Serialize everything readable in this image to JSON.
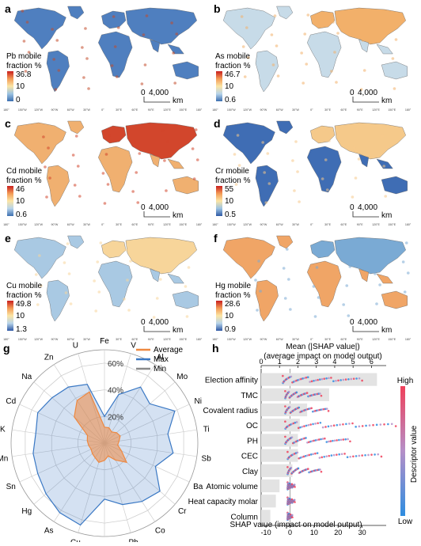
{
  "maps": [
    {
      "letter": "a",
      "title1": "Pb mobile",
      "title2": "fraction %",
      "ticks": [
        "36.8",
        "10",
        "0"
      ],
      "ramp": [
        "#c81e1e",
        "#f39a55",
        "#fbe5a4",
        "#9cc3e2",
        "#3c6fb0"
      ],
      "fill": "#4f7fbf",
      "accent": "#c24a2a"
    },
    {
      "letter": "b",
      "title1": "As mobile",
      "title2": "fraction %",
      "ticks": [
        "46.7",
        "10",
        "0.6"
      ],
      "ramp": [
        "#c81e1e",
        "#f39a55",
        "#fbe5a4",
        "#b8d4ea",
        "#3c6fb0"
      ],
      "fill": "#c7dbe8",
      "accent": "#f2b06a"
    },
    {
      "letter": "c",
      "title1": "Cd mobile",
      "title2": "fraction %",
      "ticks": [
        "46",
        "10",
        "0.6"
      ],
      "ramp": [
        "#c81e1e",
        "#f39a55",
        "#fbe5a4",
        "#b8d4ea",
        "#3c6fb0"
      ],
      "fill": "#f0b070",
      "accent": "#d2462c"
    },
    {
      "letter": "d",
      "title1": "Cr mobile",
      "title2": "fraction %",
      "ticks": [
        "55",
        "10",
        "0.5"
      ],
      "ramp": [
        "#c81e1e",
        "#f39a55",
        "#fbe5a4",
        "#9cc3e2",
        "#2e58a4"
      ],
      "fill": "#3f6db4",
      "accent": "#f5c98a"
    },
    {
      "letter": "e",
      "title1": "Cu mobile",
      "title2": "fraction %",
      "ticks": [
        "49.8",
        "10",
        "1.3"
      ],
      "ramp": [
        "#c81e1e",
        "#f39a55",
        "#fbe5a4",
        "#b8d4ea",
        "#2e58a4"
      ],
      "fill": "#a9c9e3",
      "accent": "#f7d59a"
    },
    {
      "letter": "f",
      "title1": "Hg mobile",
      "title2": "fraction %",
      "ticks": [
        "28.6",
        "10",
        "0.9"
      ],
      "ramp": [
        "#c81e1e",
        "#f39a55",
        "#fbe5a4",
        "#b8d4ea",
        "#2e58a4"
      ],
      "fill": "#f0a566",
      "accent": "#7aaad4"
    }
  ],
  "scalebar": {
    "zero": "0",
    "distance": "4,000",
    "unit": "km"
  },
  "lon_ticks": [
    "180°",
    "150°W",
    "120°W",
    "90°W",
    "60°W",
    "30°W",
    "0°",
    "30°E",
    "60°E",
    "90°E",
    "120°E",
    "150°E",
    "180°"
  ],
  "colors": {
    "average": "#ee8840",
    "max": "#3a78c4",
    "min": "#8a8a8a",
    "shap_high": "#f0405a",
    "shap_low": "#2e8de0"
  },
  "radar": {
    "letter": "g",
    "axes": [
      "Fe",
      "V",
      "Al",
      "Mo",
      "Ni",
      "Ti",
      "Sb",
      "Ba",
      "Cr",
      "Co",
      "Pb",
      "Ag",
      "Cu",
      "As",
      "Hg",
      "Sn",
      "Mn",
      "K",
      "Cd",
      "Na",
      "Zn",
      "U"
    ],
    "ring_labels": [
      "20%",
      "40%",
      "60%"
    ],
    "legend": [
      {
        "key": "average",
        "label": "Average"
      },
      {
        "key": "max",
        "label": "Max"
      },
      {
        "key": "min",
        "label": "Min"
      }
    ]
  },
  "chart_data": {
    "type": "radar",
    "categories": [
      "Fe",
      "V",
      "Al",
      "Mo",
      "Ni",
      "Ti",
      "Sb",
      "Ba",
      "Cr",
      "Co",
      "Pb",
      "Ag",
      "Cu",
      "As",
      "Hg",
      "Sn",
      "Mn",
      "K",
      "Cd",
      "Na",
      "Zn",
      "U"
    ],
    "rlim": [
      0,
      70
    ],
    "series": [
      {
        "name": "Average",
        "values": [
          12,
          12,
          10,
          12,
          13,
          11,
          10,
          14,
          22,
          15,
          10,
          13,
          15,
          13,
          12,
          11,
          12,
          13,
          14,
          30,
          38,
          40
        ]
      },
      {
        "name": "Max",
        "values": [
          20,
          38,
          50,
          45,
          58,
          48,
          52,
          42,
          55,
          52,
          48,
          42,
          64,
          62,
          58,
          55,
          54,
          52,
          55,
          52,
          50,
          46
        ]
      },
      {
        "name": "Min",
        "values": [
          0,
          0,
          0,
          0,
          0,
          0,
          0,
          0,
          0,
          0,
          0,
          0,
          0,
          0,
          0,
          0,
          0,
          0,
          0,
          0,
          0,
          0
        ]
      }
    ]
  },
  "shap": {
    "letter": "h",
    "top_title1": "Mean (|SHAP value|)",
    "top_title2": "(average impact on model output)",
    "top_ticks": [
      "0",
      "1",
      "2",
      "3",
      "4",
      "5",
      "6"
    ],
    "bottom_ticks": [
      "-10",
      "0",
      "10",
      "20",
      "30"
    ],
    "xlabel": "SHAP value (impact on model output)",
    "colorbar_high": "High",
    "colorbar_low": "Low",
    "colorbar_label": "Descriptor value",
    "features": [
      "Election affinity",
      "TMC",
      "Covalent radius",
      "OC",
      "PH",
      "CEC",
      "Clay",
      "Atomic volume",
      "Heat capacity molar",
      "Column"
    ],
    "mean_abs": [
      6.3,
      3.7,
      2.5,
      2.1,
      2.0,
      2.0,
      1.7,
      1.0,
      0.8,
      0.5
    ],
    "spread_min": [
      -3,
      -2,
      -2,
      -2,
      -2,
      -1,
      -1,
      -1,
      -1,
      -1
    ],
    "spread_max": [
      30,
      13,
      16,
      44,
      25,
      38,
      13,
      2,
      2,
      1
    ]
  }
}
